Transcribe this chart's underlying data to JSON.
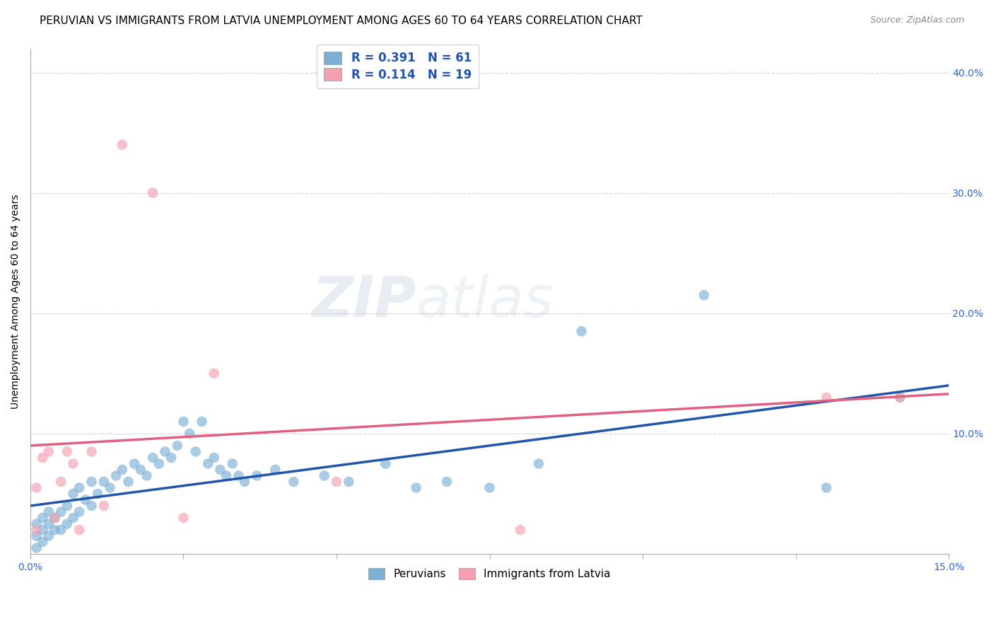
{
  "title": "PERUVIAN VS IMMIGRANTS FROM LATVIA UNEMPLOYMENT AMONG AGES 60 TO 64 YEARS CORRELATION CHART",
  "source": "Source: ZipAtlas.com",
  "ylabel": "Unemployment Among Ages 60 to 64 years",
  "xlim": [
    0.0,
    0.15
  ],
  "ylim": [
    0.0,
    0.42
  ],
  "xticks": [
    0.0,
    0.025,
    0.05,
    0.075,
    0.1,
    0.125,
    0.15
  ],
  "yticks": [
    0.0,
    0.1,
    0.2,
    0.3,
    0.4
  ],
  "ytick_labels": [
    "",
    "10.0%",
    "20.0%",
    "30.0%",
    "40.0%"
  ],
  "blue_color": "#7BAFD4",
  "pink_color": "#F4A0B0",
  "blue_line_color": "#2255AA",
  "pink_line_color": "#E06080",
  "legend_text_color": "#2255AA",
  "watermark_zip": "ZIP",
  "watermark_atlas": "atlas",
  "blue_scatter_x": [
    0.001,
    0.001,
    0.001,
    0.002,
    0.002,
    0.002,
    0.003,
    0.003,
    0.003,
    0.004,
    0.004,
    0.005,
    0.005,
    0.006,
    0.006,
    0.007,
    0.007,
    0.008,
    0.008,
    0.009,
    0.01,
    0.01,
    0.011,
    0.012,
    0.013,
    0.014,
    0.015,
    0.016,
    0.017,
    0.018,
    0.019,
    0.02,
    0.021,
    0.022,
    0.023,
    0.024,
    0.025,
    0.026,
    0.027,
    0.028,
    0.029,
    0.03,
    0.031,
    0.032,
    0.033,
    0.034,
    0.035,
    0.037,
    0.04,
    0.043,
    0.048,
    0.052,
    0.058,
    0.063,
    0.068,
    0.075,
    0.083,
    0.09,
    0.11,
    0.13,
    0.142
  ],
  "blue_scatter_y": [
    0.005,
    0.015,
    0.025,
    0.01,
    0.02,
    0.03,
    0.015,
    0.025,
    0.035,
    0.02,
    0.03,
    0.02,
    0.035,
    0.025,
    0.04,
    0.03,
    0.05,
    0.035,
    0.055,
    0.045,
    0.04,
    0.06,
    0.05,
    0.06,
    0.055,
    0.065,
    0.07,
    0.06,
    0.075,
    0.07,
    0.065,
    0.08,
    0.075,
    0.085,
    0.08,
    0.09,
    0.11,
    0.1,
    0.085,
    0.11,
    0.075,
    0.08,
    0.07,
    0.065,
    0.075,
    0.065,
    0.06,
    0.065,
    0.07,
    0.06,
    0.065,
    0.06,
    0.075,
    0.055,
    0.06,
    0.055,
    0.075,
    0.185,
    0.215,
    0.055,
    0.13
  ],
  "pink_scatter_x": [
    0.001,
    0.001,
    0.002,
    0.003,
    0.004,
    0.005,
    0.006,
    0.007,
    0.008,
    0.01,
    0.012,
    0.015,
    0.02,
    0.025,
    0.03,
    0.05,
    0.08,
    0.13,
    0.142
  ],
  "pink_scatter_y": [
    0.02,
    0.055,
    0.08,
    0.085,
    0.03,
    0.06,
    0.085,
    0.075,
    0.02,
    0.085,
    0.04,
    0.34,
    0.3,
    0.03,
    0.15,
    0.06,
    0.02,
    0.13,
    0.13
  ],
  "blue_line_x0": 0.0,
  "blue_line_y0": 0.04,
  "blue_line_x1": 0.15,
  "blue_line_y1": 0.14,
  "pink_line_x0": 0.0,
  "pink_line_y0": 0.09,
  "pink_line_x1": 0.15,
  "pink_line_y1": 0.133,
  "background_color": "#FFFFFF",
  "grid_color": "#CCCCCC",
  "title_fontsize": 11,
  "axis_label_fontsize": 10,
  "tick_label_color": "#3366CC",
  "tick_label_fontsize": 10,
  "marker_size": 110
}
